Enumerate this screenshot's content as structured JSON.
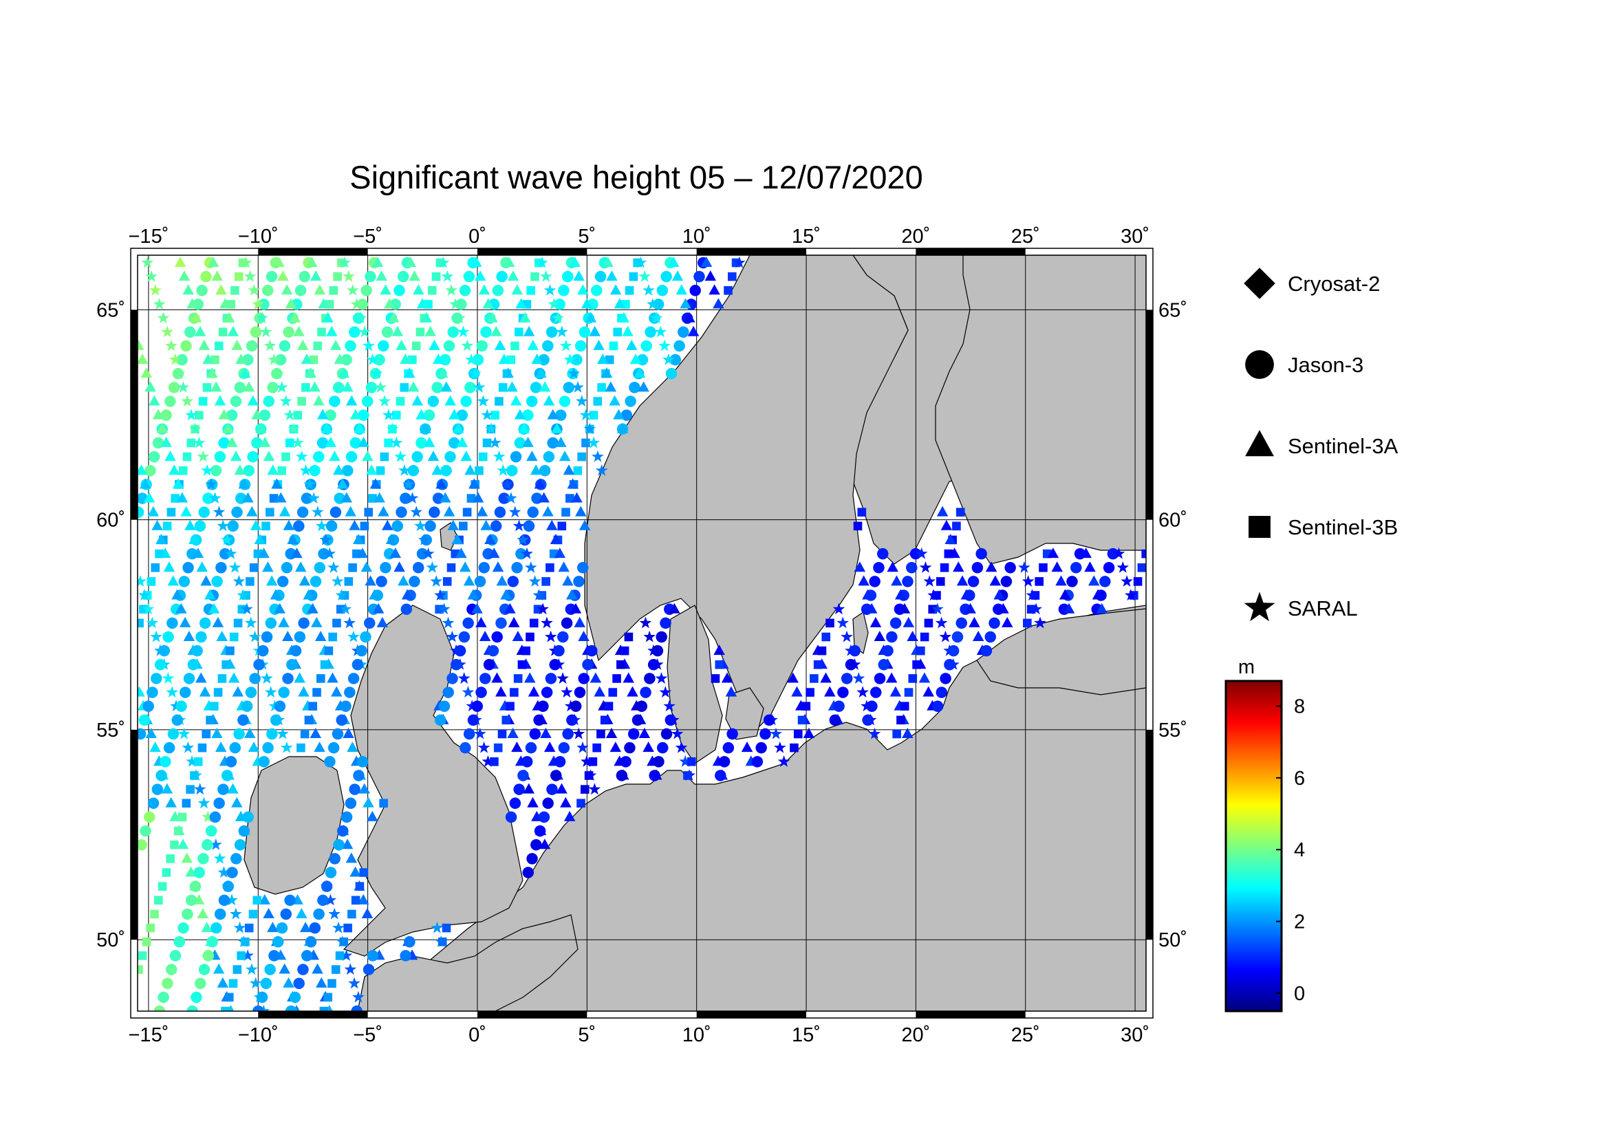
{
  "title": "Significant wave height 05 – 12/07/2020",
  "map": {
    "lon_range": [
      -15.5,
      30.5
    ],
    "lat_range": [
      48.3,
      66.3
    ],
    "lon_ticks": [
      -15,
      -10,
      -5,
      0,
      5,
      10,
      15,
      20,
      25,
      30
    ],
    "lon_tick_labels": [
      "−15˚",
      "−10˚",
      "−5˚",
      "0˚",
      "5˚",
      "10˚",
      "15˚",
      "20˚",
      "25˚",
      "30˚"
    ],
    "lat_ticks": [
      50,
      55,
      60,
      65
    ],
    "lat_tick_labels": [
      "50˚",
      "55˚",
      "60˚",
      "65˚"
    ],
    "grid": true,
    "land_color": "#bebebe",
    "sea_color": "#ffffff"
  },
  "legend": {
    "items": [
      {
        "label": "Cryosat-2",
        "marker": "diamond"
      },
      {
        "label": "Jason-3",
        "marker": "circle"
      },
      {
        "label": "Sentinel-3A",
        "marker": "triangle"
      },
      {
        "label": "Sentinel-3B",
        "marker": "square"
      },
      {
        "label": "SARAL",
        "marker": "star"
      }
    ]
  },
  "colorbar": {
    "unit": "m",
    "min": -0.5,
    "max": 8.7,
    "ticks": [
      0,
      2,
      4,
      6,
      8
    ],
    "tick_labels": [
      "0",
      "2",
      "4",
      "6",
      "8"
    ],
    "colors": [
      "#00007f",
      "#0000ff",
      "#007fff",
      "#00ffff",
      "#7fff7f",
      "#ffff00",
      "#ff7f00",
      "#ff0000",
      "#7f0000"
    ]
  }
}
